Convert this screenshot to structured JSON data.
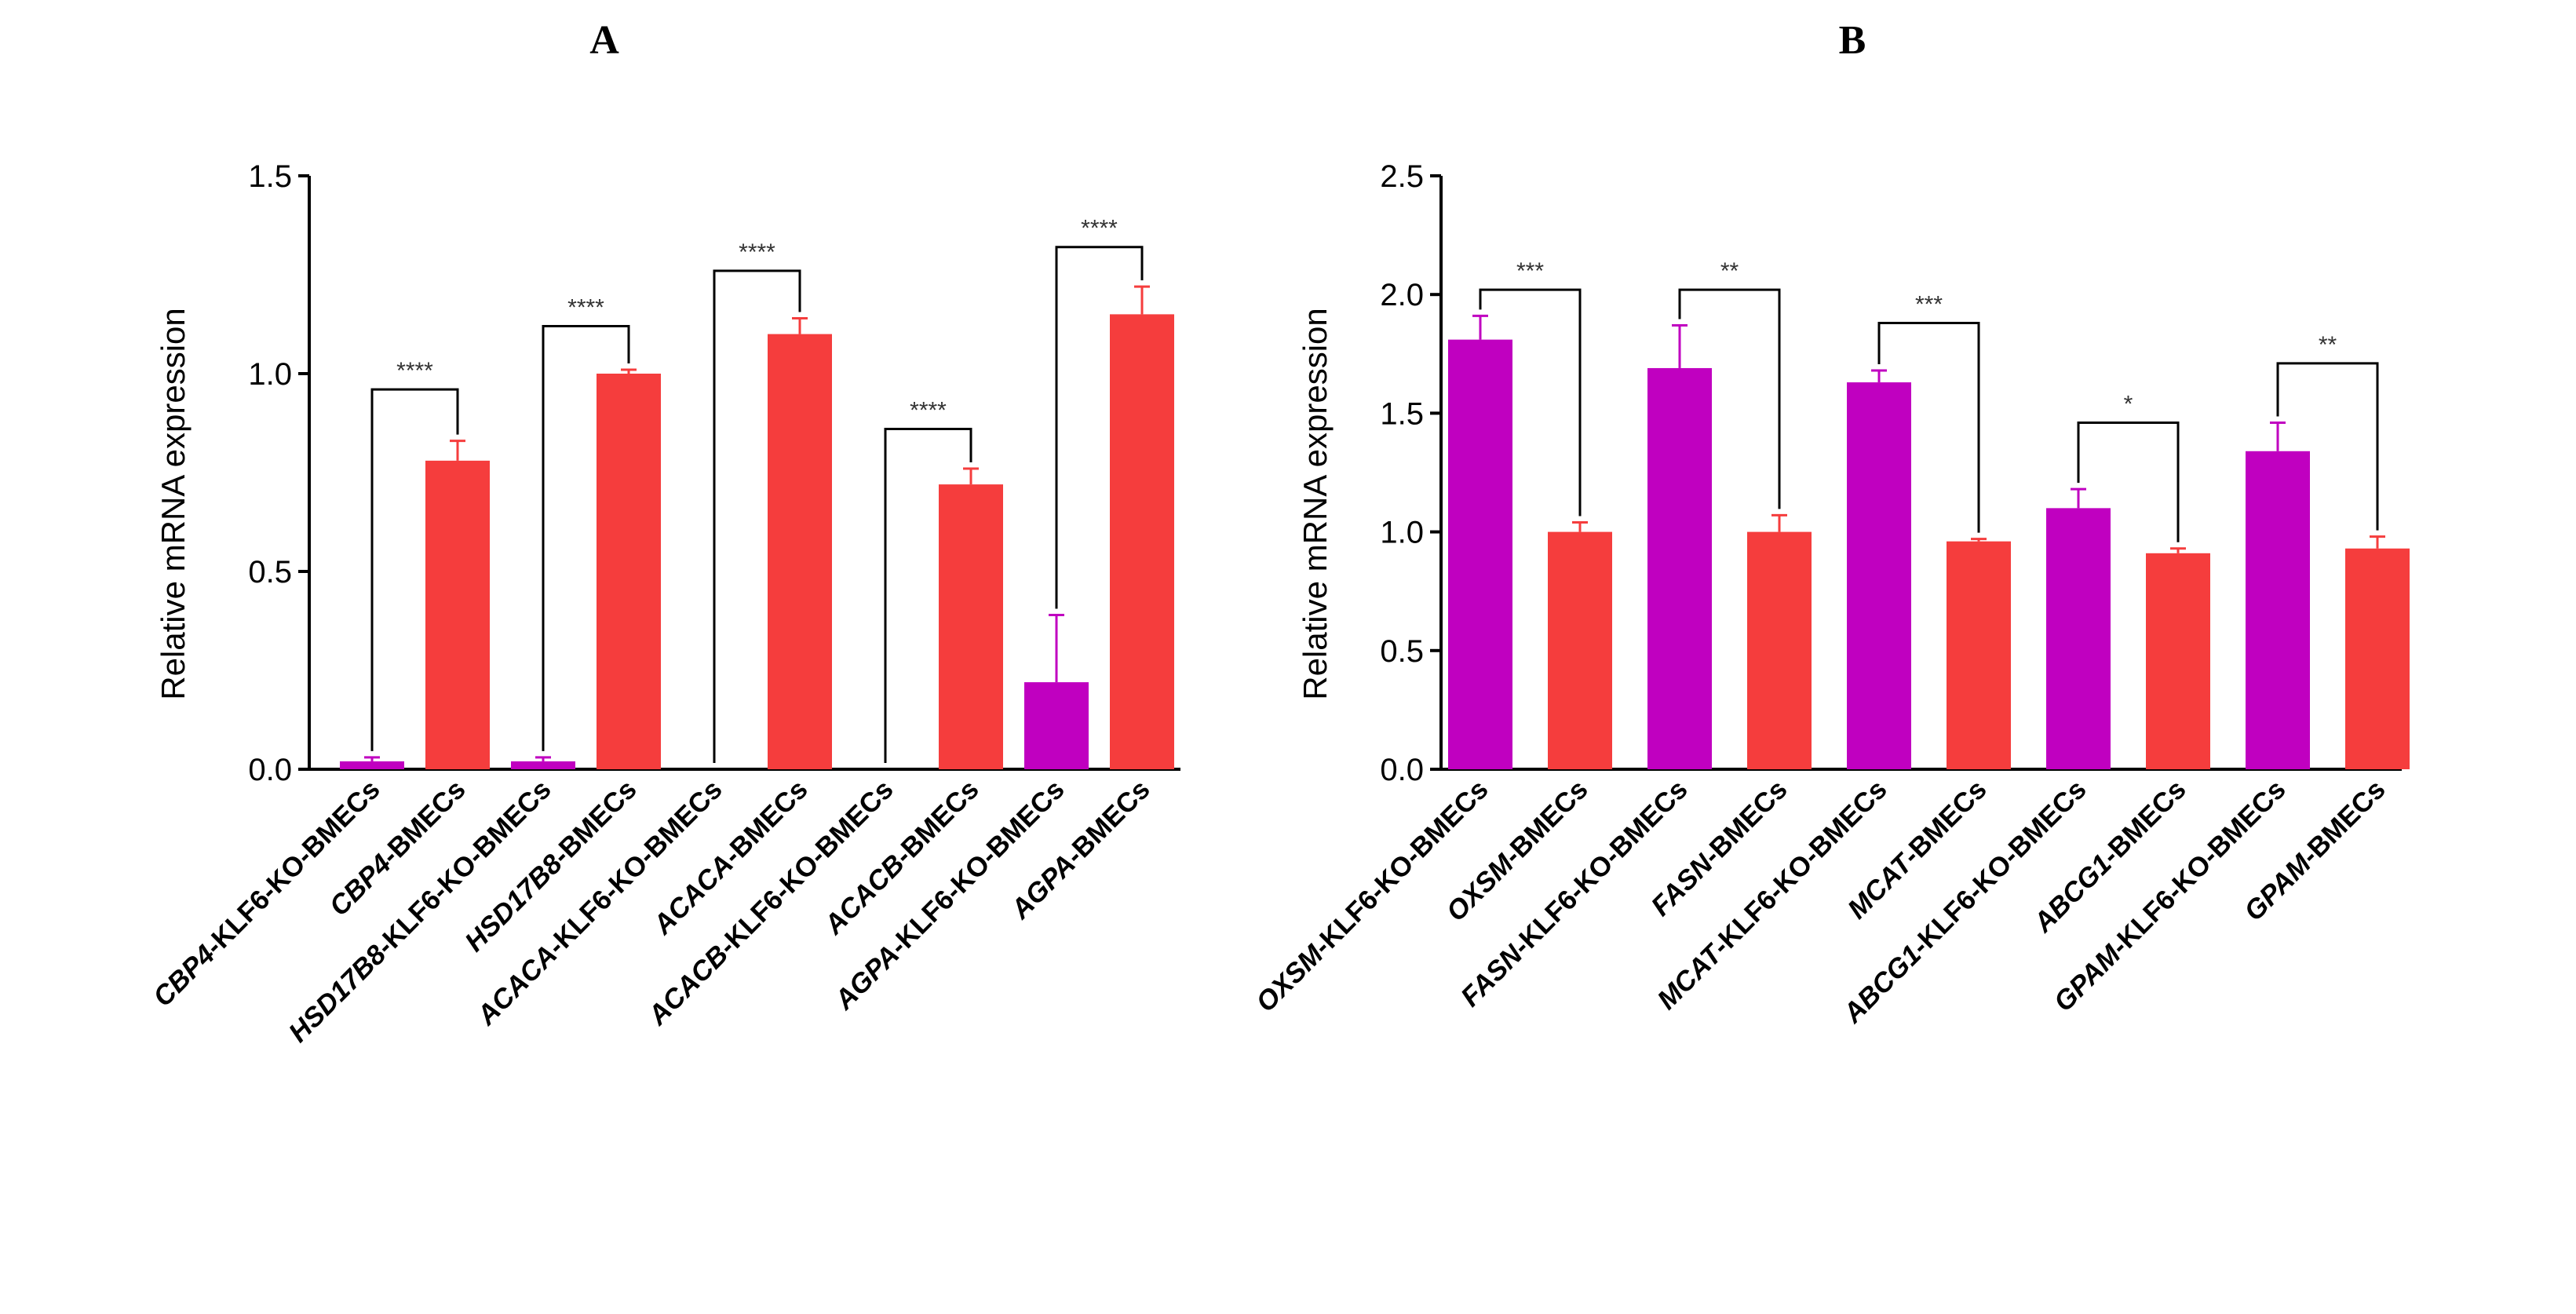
{
  "chart_data": [
    {
      "type": "bar",
      "title": "A",
      "ylabel": "Relative mRNA expression",
      "ylim": [
        0,
        1.5
      ],
      "yticks": [
        "0.0",
        "0.5",
        "1.0",
        "1.5"
      ],
      "categories": [
        {
          "gene": "CBP4",
          "suffix": "-KLF6-KO-BMECs"
        },
        {
          "gene": "CBP4",
          "suffix": "-BMECs"
        },
        {
          "gene": "HSD17B8",
          "suffix": "-KLF6-KO-BMECs"
        },
        {
          "gene": "HSD17B8",
          "suffix": "-BMECs"
        },
        {
          "gene": "ACACA",
          "suffix": "-KLF6-KO-BMECs"
        },
        {
          "gene": "ACACA",
          "suffix": "-BMECs"
        },
        {
          "gene": "ACACB",
          "suffix": "-KLF6-KO-BMECs"
        },
        {
          "gene": "ACACB",
          "suffix": "-BMECs"
        },
        {
          "gene": "AGPA",
          "suffix": "-KLF6-KO-BMECs"
        },
        {
          "gene": "AGPA",
          "suffix": "-BMECs"
        }
      ],
      "values": [
        0.02,
        0.78,
        0.02,
        1.0,
        0.0,
        1.1,
        0.0,
        0.72,
        0.22,
        1.15
      ],
      "errors": [
        0.01,
        0.05,
        0.01,
        0.01,
        0.0,
        0.04,
        0.0,
        0.04,
        0.17,
        0.07
      ],
      "colors": [
        "#c000c0",
        "#f53d3d",
        "#c000c0",
        "#f53d3d",
        "#c000c0",
        "#f53d3d",
        "#c000c0",
        "#f53d3d",
        "#c000c0",
        "#f53d3d"
      ],
      "comparisons": [
        {
          "pair": [
            0,
            1
          ],
          "y": 0.96,
          "label": "****"
        },
        {
          "pair": [
            2,
            3
          ],
          "y": 1.12,
          "label": "****"
        },
        {
          "pair": [
            4,
            5
          ],
          "y": 1.26,
          "label": "****"
        },
        {
          "pair": [
            6,
            7
          ],
          "y": 0.86,
          "label": "****"
        },
        {
          "pair": [
            8,
            9
          ],
          "y": 1.32,
          "label": "****"
        }
      ]
    },
    {
      "type": "bar",
      "title": "B",
      "ylabel": "Relative mRNA expression",
      "ylim": [
        0,
        2.5
      ],
      "yticks": [
        "0.0",
        "0.5",
        "1.0",
        "1.5",
        "2.0",
        "2.5"
      ],
      "categories": [
        {
          "gene": "OXSM",
          "suffix": "-KLF6-KO-BMECs"
        },
        {
          "gene": "OXSM",
          "suffix": "-BMECs"
        },
        {
          "gene": "FASN",
          "suffix": "-KLF6-KO-BMECs"
        },
        {
          "gene": "FASN",
          "suffix": "-BMECs"
        },
        {
          "gene": "MCAT",
          "suffix": "-KLF6-KO-BMECs"
        },
        {
          "gene": "MCAT",
          "suffix": "-BMECs"
        },
        {
          "gene": "ABCG1",
          "suffix": "-KLF6-KO-BMECs"
        },
        {
          "gene": "ABCG1",
          "suffix": "-BMECs"
        },
        {
          "gene": "GPAM",
          "suffix": "-KLF6-KO-BMECs"
        },
        {
          "gene": "GPAM",
          "suffix": "-BMECs"
        }
      ],
      "values": [
        1.81,
        1.0,
        1.69,
        1.0,
        1.63,
        0.96,
        1.1,
        0.91,
        1.34,
        0.93
      ],
      "errors": [
        0.1,
        0.04,
        0.18,
        0.07,
        0.05,
        0.01,
        0.08,
        0.02,
        0.12,
        0.05
      ],
      "colors": [
        "#c000c0",
        "#f53d3d",
        "#c000c0",
        "#f53d3d",
        "#c000c0",
        "#f53d3d",
        "#c000c0",
        "#f53d3d",
        "#c000c0",
        "#f53d3d"
      ],
      "comparisons": [
        {
          "pair": [
            0,
            1
          ],
          "y": 2.02,
          "label": "***"
        },
        {
          "pair": [
            2,
            3
          ],
          "y": 2.02,
          "label": "**"
        },
        {
          "pair": [
            4,
            5
          ],
          "y": 1.88,
          "label": "***"
        },
        {
          "pair": [
            6,
            7
          ],
          "y": 1.46,
          "label": "*"
        },
        {
          "pair": [
            8,
            9
          ],
          "y": 1.71,
          "label": "**"
        }
      ]
    }
  ]
}
